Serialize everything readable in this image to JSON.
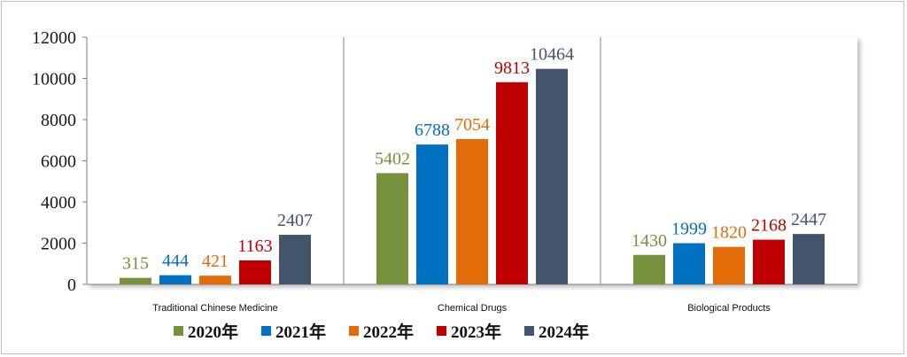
{
  "chart_data": {
    "type": "bar",
    "title": "",
    "xlabel": "",
    "ylabel": "",
    "ylim": [
      0,
      12000
    ],
    "yticks": [
      0,
      2000,
      4000,
      6000,
      8000,
      10000,
      12000
    ],
    "yticks_labels": [
      "0",
      "2000",
      "4000",
      "6000",
      "8000",
      "10000",
      "12000"
    ],
    "grid": false,
    "legend_position": "bottom",
    "categories": [
      "Traditional Chinese Medicine",
      "Chemical Drugs",
      "Biological Products"
    ],
    "series": [
      {
        "name": "2020年",
        "color": "#76923c",
        "values": [
          315,
          5402,
          1430
        ],
        "labels": [
          "315",
          "5402",
          "1430"
        ]
      },
      {
        "name": "2021年",
        "color": "#0070c0",
        "values": [
          444,
          6788,
          1999
        ],
        "labels": [
          "444",
          "6788",
          "1999"
        ]
      },
      {
        "name": "2022年",
        "color": "#e36c09",
        "values": [
          421,
          7054,
          1820
        ],
        "labels": [
          "421",
          "7054",
          "1820"
        ]
      },
      {
        "name": "2023年",
        "color": "#c00000",
        "values": [
          1163,
          9813,
          2168
        ],
        "labels": [
          "1163",
          "9813",
          "2168"
        ]
      },
      {
        "name": "2024年",
        "color": "#44546a",
        "values": [
          2407,
          10464,
          2447
        ],
        "labels": [
          "2407",
          "10464",
          "2447"
        ]
      }
    ]
  }
}
